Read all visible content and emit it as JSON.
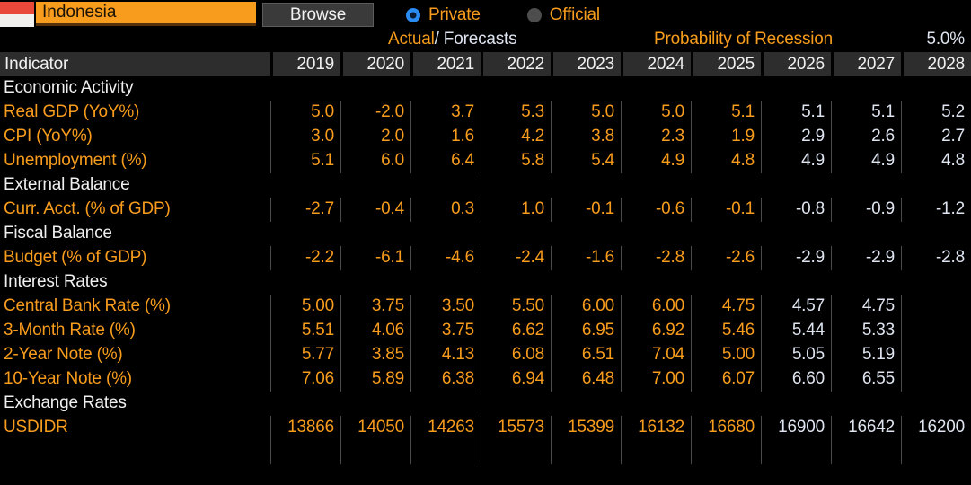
{
  "header": {
    "country_input_value": "Indonesia",
    "browse_button": "Browse",
    "source_options": [
      {
        "label": "Private",
        "selected": true
      },
      {
        "label": "Official",
        "selected": false
      }
    ],
    "legend": {
      "actual": "Actual",
      "separator": "/",
      "forecasts": "Forecasts"
    },
    "probability_of_recession": {
      "label": "Probability of Recession",
      "value": "5.0%"
    }
  },
  "table": {
    "indicator_column_header": "Indicator",
    "years": [
      "2019",
      "2020",
      "2021",
      "2022",
      "2023",
      "2024",
      "2025",
      "2026",
      "2027",
      "2028"
    ],
    "forecast_start_index": 7,
    "rows": [
      {
        "type": "section",
        "label": "Economic Activity"
      },
      {
        "type": "data",
        "label": "Real GDP (YoY%)",
        "values": [
          "5.0",
          "-2.0",
          "3.7",
          "5.3",
          "5.0",
          "5.0",
          "5.1",
          "5.1",
          "5.1",
          "5.2"
        ]
      },
      {
        "type": "data",
        "label": "CPI (YoY%)",
        "values": [
          "3.0",
          "2.0",
          "1.6",
          "4.2",
          "3.8",
          "2.3",
          "1.9",
          "2.9",
          "2.6",
          "2.7"
        ]
      },
      {
        "type": "data",
        "label": "Unemployment (%)",
        "values": [
          "5.1",
          "6.0",
          "6.4",
          "5.8",
          "5.4",
          "4.9",
          "4.8",
          "4.9",
          "4.9",
          "4.8"
        ]
      },
      {
        "type": "section",
        "label": "External Balance"
      },
      {
        "type": "data",
        "label": "Curr. Acct. (% of GDP)",
        "values": [
          "-2.7",
          "-0.4",
          "0.3",
          "1.0",
          "-0.1",
          "-0.6",
          "-0.1",
          "-0.8",
          "-0.9",
          "-1.2"
        ]
      },
      {
        "type": "section",
        "label": "Fiscal Balance"
      },
      {
        "type": "data",
        "label": "Budget (% of GDP)",
        "values": [
          "-2.2",
          "-6.1",
          "-4.6",
          "-2.4",
          "-1.6",
          "-2.8",
          "-2.6",
          "-2.9",
          "-2.9",
          "-2.8"
        ]
      },
      {
        "type": "section",
        "label": "Interest Rates"
      },
      {
        "type": "data",
        "label": "Central Bank Rate (%)",
        "values": [
          "5.00",
          "3.75",
          "3.50",
          "5.50",
          "6.00",
          "6.00",
          "4.75",
          "4.57",
          "4.75",
          ""
        ]
      },
      {
        "type": "data",
        "label": "3-Month Rate (%)",
        "values": [
          "5.51",
          "4.06",
          "3.75",
          "6.62",
          "6.95",
          "6.92",
          "5.46",
          "5.44",
          "5.33",
          ""
        ]
      },
      {
        "type": "data",
        "label": "2-Year Note (%)",
        "values": [
          "5.77",
          "3.85",
          "4.13",
          "6.08",
          "6.51",
          "7.04",
          "5.00",
          "5.05",
          "5.19",
          ""
        ]
      },
      {
        "type": "data",
        "label": "10-Year Note (%)",
        "values": [
          "7.06",
          "5.89",
          "6.38",
          "6.94",
          "6.48",
          "7.00",
          "6.07",
          "6.60",
          "6.55",
          ""
        ]
      },
      {
        "type": "section",
        "label": "Exchange Rates"
      },
      {
        "type": "data",
        "label": "USDIDR",
        "values": [
          "13866",
          "14050",
          "14263",
          "15573",
          "15399",
          "16132",
          "16680",
          "16900",
          "16642",
          "16200"
        ]
      }
    ]
  },
  "colors": {
    "accent_orange": "#f79c1d",
    "forecast_white": "#dfe5f0",
    "selected_radio_blue": "#2a8bf2",
    "header_row_bg": "#2d2d2d",
    "grid_line": "#4b4b4b",
    "flag_red": "#e9493a"
  }
}
